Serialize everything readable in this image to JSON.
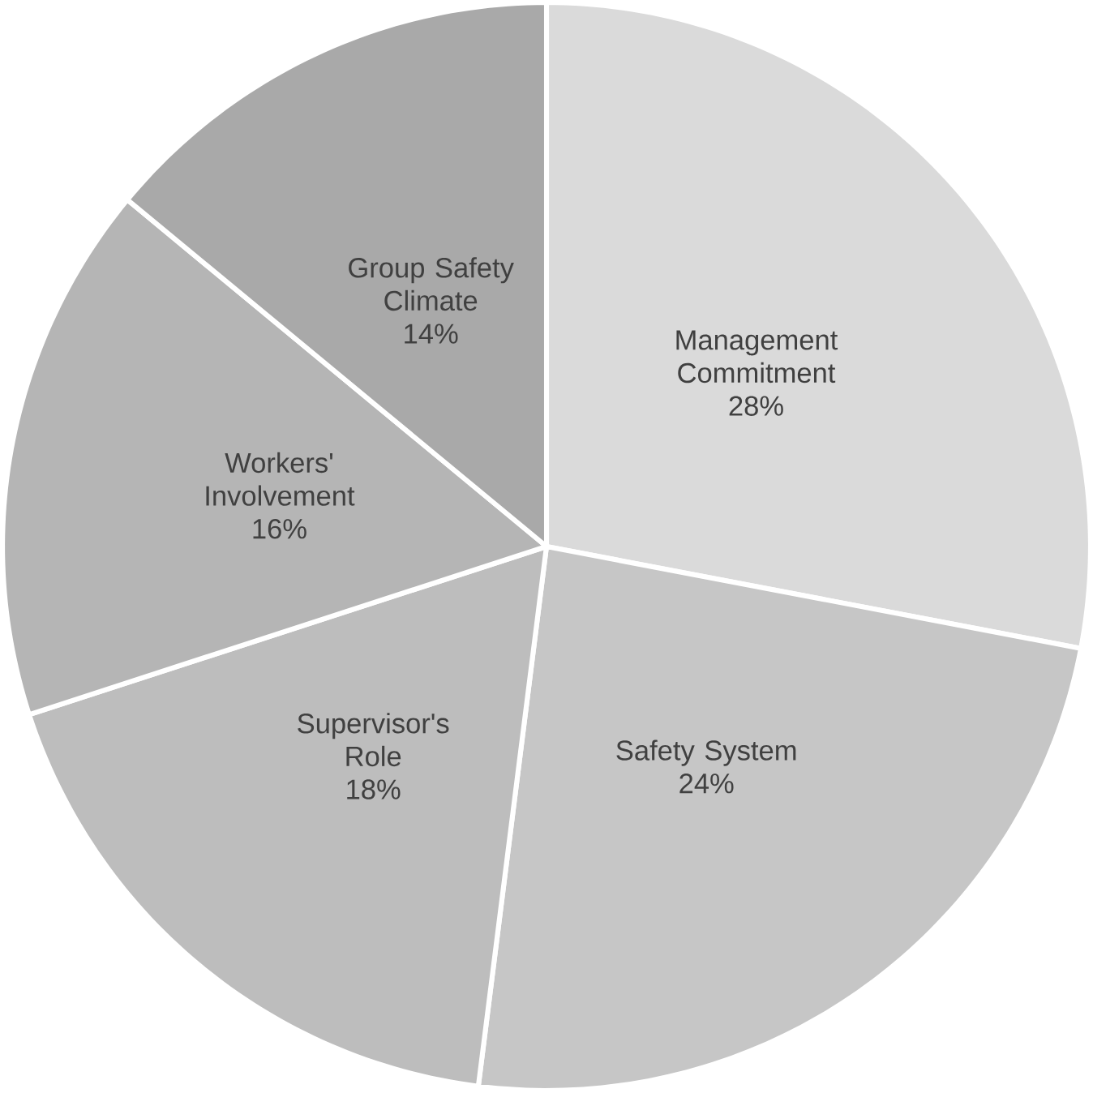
{
  "chart_data": {
    "type": "pie",
    "categories": [
      "Management Commitment",
      "Safety System",
      "Supervisor's Role",
      "Workers' Involvement",
      "Group Safety Climate"
    ],
    "values": [
      28,
      24,
      18,
      16,
      14
    ],
    "value_labels": [
      "28%",
      "24%",
      "18%",
      "16%",
      "14%"
    ],
    "colors": [
      "#dadada",
      "#c6c6c6",
      "#bdbdbd",
      "#b5b5b5",
      "#a9a9a9"
    ]
  }
}
